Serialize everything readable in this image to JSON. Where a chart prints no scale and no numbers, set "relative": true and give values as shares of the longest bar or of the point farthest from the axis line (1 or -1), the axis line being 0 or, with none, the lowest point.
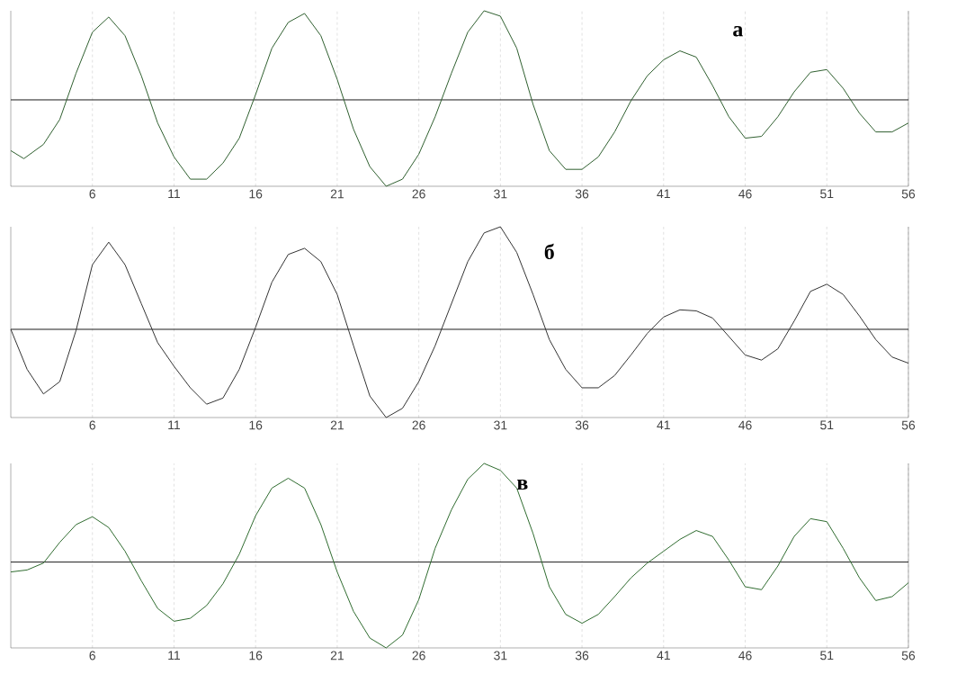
{
  "chart_data": [
    {
      "type": "line",
      "title": "а",
      "relative": true,
      "x": [
        1,
        1.8,
        3,
        4,
        5,
        6,
        7,
        8,
        9,
        10,
        11,
        12,
        13,
        14,
        15,
        16,
        17,
        18,
        19,
        20,
        21,
        22,
        23,
        24,
        25,
        26,
        27,
        28,
        29,
        30,
        31,
        32,
        33,
        34,
        35,
        36,
        37,
        38,
        39,
        40,
        41,
        42,
        43,
        44,
        45,
        46,
        47,
        48,
        49,
        50,
        51,
        52,
        53,
        54,
        55,
        56
      ],
      "series": [
        {
          "color": "#2f5f2f",
          "values": [
            -0.57,
            -0.66,
            -0.5,
            -0.22,
            0.3,
            0.76,
            0.93,
            0.72,
            0.27,
            -0.26,
            -0.64,
            -0.89,
            -0.89,
            -0.71,
            -0.43,
            0.06,
            0.58,
            0.87,
            0.97,
            0.72,
            0.23,
            -0.33,
            -0.75,
            -0.97,
            -0.89,
            -0.61,
            -0.19,
            0.3,
            0.76,
            1.0,
            0.94,
            0.58,
            -0.05,
            -0.57,
            -0.78,
            -0.78,
            -0.64,
            -0.36,
            -0.01,
            0.27,
            0.45,
            0.55,
            0.48,
            0.16,
            -0.19,
            -0.43,
            -0.41,
            -0.19,
            0.09,
            0.31,
            0.34,
            0.13,
            -0.15,
            -0.36,
            -0.36,
            -0.26
          ]
        }
      ],
      "xlim": [
        1,
        56
      ],
      "xticks": [
        6,
        11,
        16,
        21,
        26,
        31,
        36,
        41,
        46,
        51,
        56
      ],
      "grid": "x"
    },
    {
      "type": "line",
      "title": "б",
      "relative": true,
      "x": [
        1,
        2,
        3,
        4,
        5,
        6,
        7,
        8,
        9,
        10,
        11,
        12,
        13,
        14,
        15,
        16,
        17,
        18,
        19,
        20,
        21,
        22,
        23,
        24,
        25,
        26,
        27,
        28,
        29,
        30,
        31,
        32,
        33,
        34,
        35,
        36,
        37,
        38,
        39,
        40,
        41,
        42,
        43,
        44,
        45,
        46,
        47,
        48,
        49,
        50,
        51,
        52,
        53,
        54,
        55,
        56
      ],
      "series": [
        {
          "color": "#333333",
          "values": [
            0,
            -0.39,
            -0.63,
            -0.51,
            -0.01,
            0.63,
            0.85,
            0.63,
            0.25,
            -0.13,
            -0.36,
            -0.57,
            -0.73,
            -0.67,
            -0.39,
            0.02,
            0.46,
            0.73,
            0.79,
            0.66,
            0.34,
            -0.16,
            -0.65,
            -0.86,
            -0.77,
            -0.51,
            -0.16,
            0.25,
            0.66,
            0.94,
            1.0,
            0.75,
            0.34,
            -0.1,
            -0.39,
            -0.57,
            -0.57,
            -0.45,
            -0.25,
            -0.04,
            0.12,
            0.19,
            0.18,
            0.11,
            -0.07,
            -0.25,
            -0.3,
            -0.19,
            0.08,
            0.37,
            0.44,
            0.34,
            0.13,
            -0.1,
            -0.27,
            -0.33
          ]
        }
      ],
      "xlim": [
        1,
        56
      ],
      "xticks": [
        6,
        11,
        16,
        21,
        26,
        31,
        36,
        41,
        46,
        51,
        56
      ],
      "grid": "x"
    },
    {
      "type": "line",
      "title": "в",
      "relative": true,
      "x": [
        1,
        2,
        3,
        4,
        5,
        6,
        7,
        8,
        9,
        10,
        11,
        12,
        13,
        14,
        15,
        16,
        17,
        18,
        19,
        20,
        21,
        22,
        23,
        24,
        25,
        26,
        27,
        28,
        29,
        30,
        31,
        32,
        33,
        34,
        35,
        36,
        37,
        38,
        39,
        40,
        41,
        42,
        43,
        44,
        45,
        46,
        47,
        48,
        49,
        50,
        51,
        52,
        53,
        54,
        55,
        56
      ],
      "series": [
        {
          "color": "#2f6b2f",
          "values": [
            -0.1,
            -0.08,
            -0.01,
            0.2,
            0.38,
            0.46,
            0.35,
            0.11,
            -0.19,
            -0.47,
            -0.6,
            -0.57,
            -0.44,
            -0.22,
            0.08,
            0.47,
            0.75,
            0.85,
            0.75,
            0.38,
            -0.1,
            -0.5,
            -0.77,
            -0.87,
            -0.74,
            -0.38,
            0.14,
            0.53,
            0.84,
            1.0,
            0.93,
            0.75,
            0.29,
            -0.25,
            -0.53,
            -0.62,
            -0.53,
            -0.35,
            -0.16,
            -0.01,
            0.11,
            0.23,
            0.32,
            0.26,
            0.02,
            -0.25,
            -0.28,
            -0.04,
            0.26,
            0.44,
            0.41,
            0.14,
            -0.16,
            -0.39,
            -0.35,
            -0.21
          ]
        }
      ],
      "xlim": [
        1,
        56
      ],
      "xticks": [
        6,
        11,
        16,
        21,
        26,
        31,
        36,
        41,
        46,
        51,
        56
      ],
      "grid": "x"
    }
  ]
}
